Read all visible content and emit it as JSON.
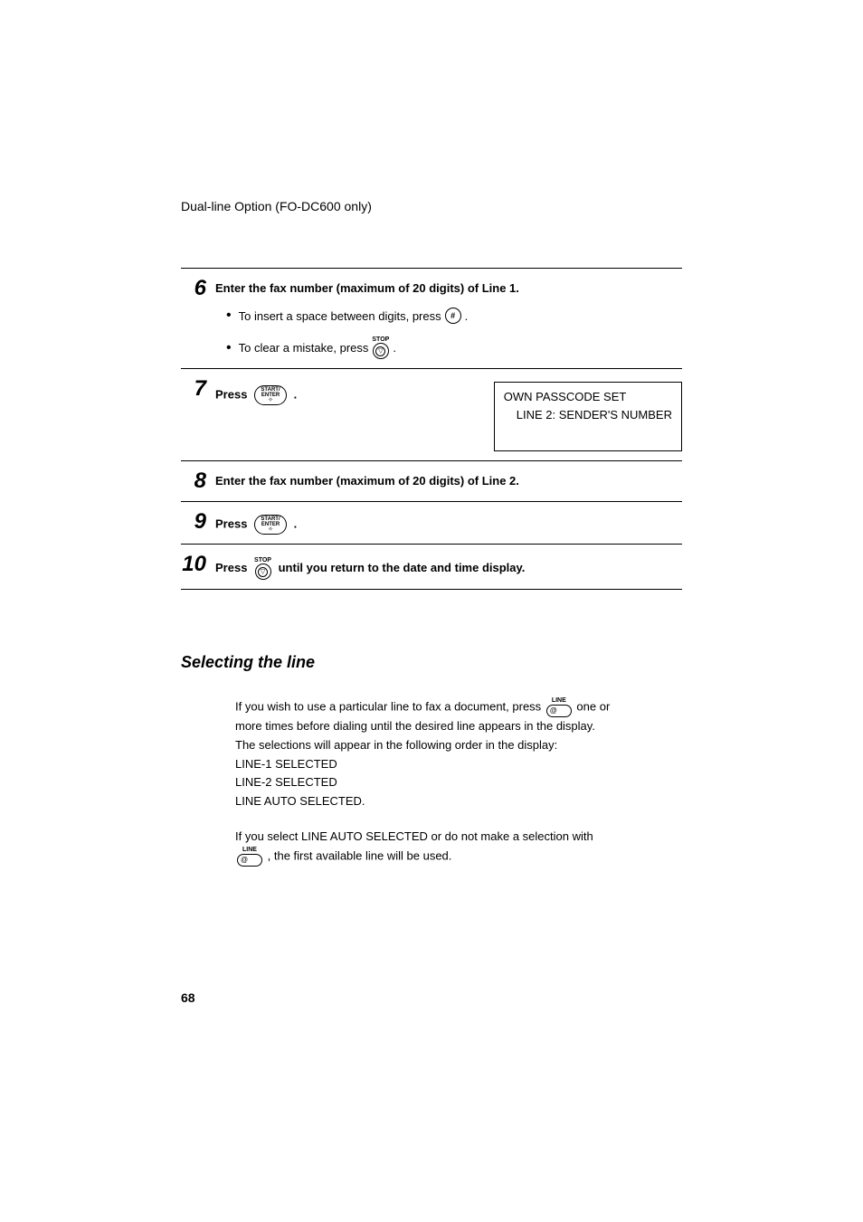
{
  "header": "Dual-line Option (FO-DC600 only)",
  "steps": {
    "s6": {
      "num": "6",
      "title": "Enter the fax number (maximum of 20 digits) of Line 1.",
      "b1_pre": "To insert  a space between digits, press ",
      "b1_post": " .",
      "b2_pre": "To clear a mistake, press ",
      "b2_post": " ."
    },
    "s7": {
      "num": "7",
      "press": "Press ",
      "dot": ".",
      "disp1": "OWN PASSCODE SET",
      "disp2": "LINE 2: SENDER'S NUMBER"
    },
    "s8": {
      "num": "8",
      "title": "Enter the fax number (maximum of 20 digits) of Line 2."
    },
    "s9": {
      "num": "9",
      "press": "Press ",
      "dot": "."
    },
    "s10": {
      "num": "10",
      "press": "Press ",
      "rest": " until you return to the date and time display."
    }
  },
  "icons": {
    "pound": "#",
    "stop": "STOP",
    "stop_glyph": "▽",
    "start1": "START/",
    "start2": "ENTER",
    "start_dot": "✧",
    "line": "LINE",
    "line_at": "@"
  },
  "section_heading": "Selecting the line",
  "para1_a": "If you wish to use a particular line to fax a document, press ",
  "para1_b": " one or more times before dialing until the desired line appears in the display. The selections will appear in the following order in the display:",
  "para1_l1": "LINE-1 SELECTED",
  "para1_l2": "LINE-2 SELECTED",
  "para1_l3": "LINE AUTO SELECTED.",
  "para2_a": "If you select LINE AUTO SELECTED or do not make a selection with ",
  "para2_b": ", the first available line will be used.",
  "page_number": "68"
}
